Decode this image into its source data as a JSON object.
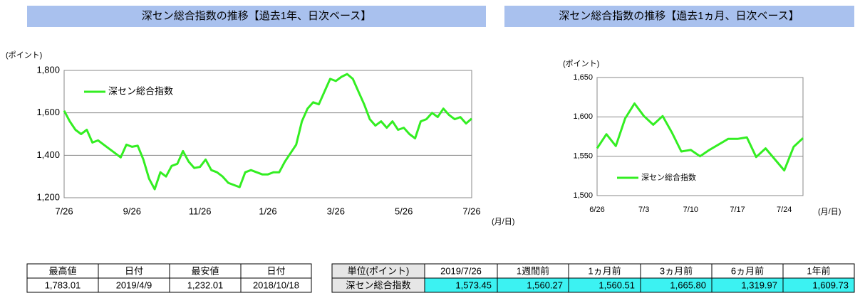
{
  "chart_data": [
    {
      "type": "line",
      "title": "深セン総合指数の推移【過去1年、日次ベース】",
      "y_label": "(ポイント)",
      "x_label": "(月/日)",
      "categories": [
        "7/26",
        null,
        null,
        null,
        null,
        null,
        null,
        null,
        null,
        null,
        null,
        null,
        "9/26",
        null,
        null,
        null,
        null,
        null,
        null,
        null,
        null,
        null,
        null,
        null,
        "11/26",
        null,
        null,
        null,
        null,
        null,
        null,
        null,
        null,
        null,
        null,
        null,
        "1/26",
        null,
        null,
        null,
        null,
        null,
        null,
        null,
        null,
        null,
        null,
        null,
        "3/26",
        null,
        null,
        null,
        null,
        null,
        null,
        null,
        null,
        null,
        null,
        null,
        "5/26",
        null,
        null,
        null,
        null,
        null,
        null,
        null,
        null,
        null,
        null,
        null,
        "7/26"
      ],
      "series": [
        {
          "name": "深セン総合指数",
          "color": "#33ee22",
          "values": [
            1610,
            1560,
            1520,
            1500,
            1520,
            1460,
            1470,
            1450,
            1430,
            1410,
            1390,
            1450,
            1440,
            1445,
            1380,
            1290,
            1240,
            1320,
            1300,
            1350,
            1360,
            1420,
            1370,
            1340,
            1345,
            1380,
            1330,
            1320,
            1300,
            1270,
            1260,
            1250,
            1320,
            1330,
            1320,
            1310,
            1310,
            1320,
            1320,
            1370,
            1410,
            1450,
            1560,
            1620,
            1650,
            1640,
            1700,
            1760,
            1750,
            1770,
            1783,
            1760,
            1700,
            1640,
            1570,
            1540,
            1560,
            1530,
            1560,
            1520,
            1530,
            1500,
            1480,
            1560,
            1570,
            1600,
            1580,
            1620,
            1590,
            1570,
            1580,
            1550,
            1573
          ]
        }
      ],
      "ylim": [
        1200,
        1800
      ],
      "yticks": [
        {
          "value": 1200,
          "label": "1,200"
        },
        {
          "value": 1400,
          "label": "1,400"
        },
        {
          "value": 1600,
          "label": "1,600"
        },
        {
          "value": 1800,
          "label": "1,800"
        }
      ],
      "grid": true,
      "legend": "upper left"
    },
    {
      "type": "line",
      "title": "深セン総合指数の推移【過去1ヵ月、日次ベース】",
      "y_label": "(ポイント)",
      "x_label": "(月/日)",
      "categories": [
        "6/26",
        null,
        null,
        null,
        null,
        "7/3",
        null,
        null,
        null,
        null,
        "7/10",
        null,
        null,
        null,
        null,
        "7/17",
        null,
        null,
        null,
        null,
        "7/24",
        null,
        null
      ],
      "series": [
        {
          "name": "深セン総合指数",
          "color": "#33ee22",
          "values": [
            1560,
            1578,
            1563,
            1598,
            1617,
            1601,
            1590,
            1601,
            1580,
            1556,
            1558,
            1550,
            1558,
            1565,
            1572,
            1572,
            1574,
            1549,
            1560,
            1546,
            1532,
            1562,
            1573
          ]
        }
      ],
      "ylim": [
        1500,
        1650
      ],
      "yticks": [
        {
          "value": 1500,
          "label": "1,500"
        },
        {
          "value": 1550,
          "label": "1,550"
        },
        {
          "value": 1600,
          "label": "1,600"
        },
        {
          "value": 1650,
          "label": "1,650"
        }
      ],
      "grid": true,
      "legend": "lower left"
    }
  ],
  "tables": [
    {
      "header": [
        "最高値",
        "日付",
        "最安値",
        "日付"
      ],
      "rows": [
        [
          "1,783.01",
          "2019/4/9",
          "1,232.01",
          "2018/10/18"
        ]
      ]
    },
    {
      "header": [
        "単位(ポイント)",
        "2019/7/26",
        "1週間前",
        "1ヵ月前",
        "3ヵ月前",
        "6ヵ月前",
        "1年前"
      ],
      "rows": [
        [
          "深セン総合指数",
          "1,573.45",
          "1,560.27",
          "1,560.51",
          "1,665.80",
          "1,319.97",
          "1,609.73"
        ]
      ]
    }
  ]
}
